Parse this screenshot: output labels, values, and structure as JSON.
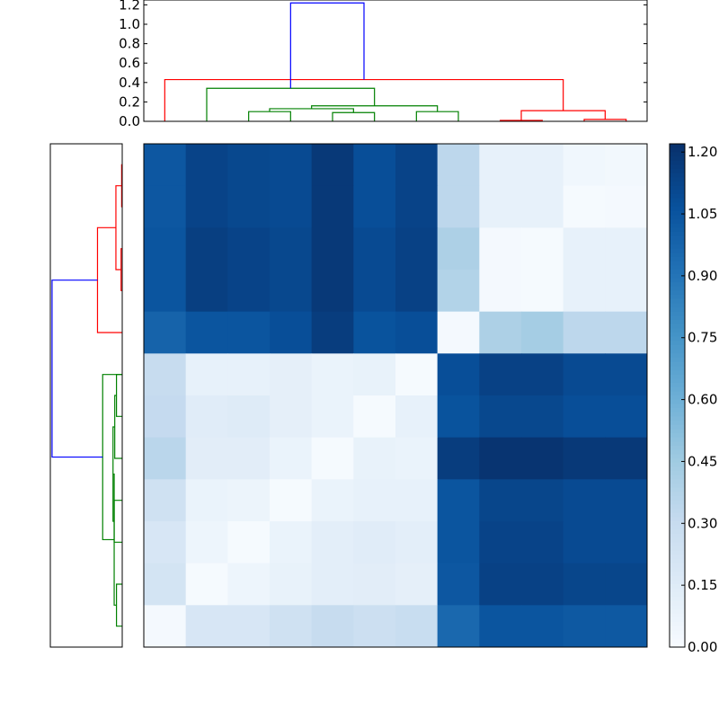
{
  "chart_data": [
    {
      "type": "dendrogram",
      "orientation": "top",
      "ylim": [
        0,
        1.25
      ],
      "yticks": [
        "0.0",
        "0.2",
        "0.4",
        "0.6",
        "0.8",
        "1.0",
        "1.2"
      ],
      "colors": {
        "root": "#0000ff",
        "left_cluster": "#008000",
        "right_cluster": "#ff0000"
      },
      "leaf_count": 12,
      "merges": [
        {
          "left": 5,
          "right": 6,
          "height": 0.09,
          "color": "#008000"
        },
        {
          "left": 9,
          "right": 10,
          "height": 0.01,
          "color": "#ff0000"
        },
        {
          "left": 11,
          "right": 12,
          "height": 0.02,
          "color": "#ff0000"
        },
        {
          "left": 3,
          "right": 4,
          "height": 0.1,
          "color": "#008000"
        },
        {
          "left": 7,
          "right": 8,
          "height": 0.1,
          "color": "#008000"
        },
        {
          "left": 15,
          "right": 14,
          "height": 0.11,
          "color": "#ff0000"
        },
        {
          "left": 13,
          "right": 16,
          "height": 0.13,
          "color": "#008000"
        },
        {
          "left": 19,
          "right": 17,
          "height": 0.16,
          "color": "#008000"
        },
        {
          "left": 2,
          "right": 20,
          "height": 0.34,
          "color": "#008000"
        },
        {
          "left": 1,
          "right": 18,
          "height": 0.43,
          "color": "#ff0000"
        },
        {
          "left": 21,
          "right": 22,
          "height": 1.22,
          "color": "#0000ff"
        }
      ]
    },
    {
      "type": "dendrogram",
      "orientation": "left",
      "xlim": [
        0,
        1.25
      ],
      "colors": {
        "root": "#0000ff",
        "upper_cluster": "#ff0000",
        "lower_cluster": "#008000"
      },
      "leaf_count": 12,
      "merges": [
        {
          "left": 1,
          "right": 2,
          "height": 0.01,
          "color": "#ff0000"
        },
        {
          "left": 3,
          "right": 4,
          "height": 0.02,
          "color": "#ff0000"
        },
        {
          "left": 13,
          "right": 14,
          "height": 0.11,
          "color": "#ff0000"
        },
        {
          "left": 15,
          "right": 5,
          "height": 0.43,
          "color": "#ff0000"
        },
        {
          "left": 6,
          "right": 7,
          "height": 0.1,
          "color": "#008000"
        },
        {
          "left": 17,
          "right": 8,
          "height": 0.13,
          "color": "#008000"
        },
        {
          "left": 9,
          "right": 10,
          "height": 0.14,
          "color": "#008000"
        },
        {
          "left": 18,
          "right": 19,
          "height": 0.16,
          "color": "#008000"
        },
        {
          "left": 11,
          "right": 12,
          "height": 0.1,
          "color": "#008000"
        },
        {
          "left": 20,
          "right": 21,
          "height": 0.14,
          "color": "#008000"
        },
        {
          "left": 22,
          "right": 6,
          "height": 0.34,
          "color": "#008000"
        },
        {
          "left": 16,
          "right": 23,
          "height": 1.22,
          "color": "#0000ff"
        }
      ]
    },
    {
      "type": "heatmap",
      "colormap": "Blues",
      "vmin": 0,
      "vmax": 1.22,
      "colorbar_ticks": [
        "0.00",
        "0.15",
        "0.30",
        "0.45",
        "0.60",
        "0.75",
        "0.90",
        "1.05",
        "1.20"
      ],
      "matrix": [
        [
          1.04,
          1.13,
          1.11,
          1.1,
          1.18,
          1.08,
          1.13,
          0.34,
          0.1,
          0.1,
          0.04,
          0.03
        ],
        [
          1.04,
          1.13,
          1.11,
          1.1,
          1.18,
          1.08,
          1.13,
          0.34,
          0.1,
          0.1,
          0.01,
          0.02
        ],
        [
          1.05,
          1.15,
          1.13,
          1.11,
          1.18,
          1.1,
          1.14,
          0.4,
          0.02,
          0.01,
          0.1,
          0.1
        ],
        [
          1.05,
          1.15,
          1.13,
          1.11,
          1.18,
          1.1,
          1.14,
          0.38,
          0.02,
          0.01,
          0.1,
          0.1
        ],
        [
          0.98,
          1.05,
          1.05,
          1.08,
          1.16,
          1.06,
          1.08,
          0.02,
          0.4,
          0.43,
          0.34,
          0.34
        ],
        [
          0.3,
          0.1,
          0.1,
          0.11,
          0.08,
          0.09,
          0.01,
          1.08,
          1.14,
          1.14,
          1.1,
          1.1
        ],
        [
          0.31,
          0.14,
          0.15,
          0.11,
          0.08,
          0.01,
          0.1,
          1.06,
          1.11,
          1.11,
          1.08,
          1.08
        ],
        [
          0.35,
          0.13,
          0.13,
          0.08,
          0.01,
          0.09,
          0.08,
          1.16,
          1.2,
          1.2,
          1.18,
          1.18
        ],
        [
          0.25,
          0.08,
          0.07,
          0.01,
          0.08,
          0.1,
          0.1,
          1.05,
          1.12,
          1.12,
          1.1,
          1.1
        ],
        [
          0.2,
          0.06,
          0.01,
          0.08,
          0.12,
          0.14,
          0.12,
          1.05,
          1.13,
          1.13,
          1.1,
          1.1
        ],
        [
          0.22,
          0.01,
          0.06,
          0.09,
          0.12,
          0.13,
          0.11,
          1.04,
          1.14,
          1.14,
          1.12,
          1.12
        ],
        [
          0.02,
          0.2,
          0.2,
          0.25,
          0.3,
          0.27,
          0.29,
          0.96,
          1.05,
          1.05,
          1.03,
          1.03
        ]
      ]
    }
  ]
}
